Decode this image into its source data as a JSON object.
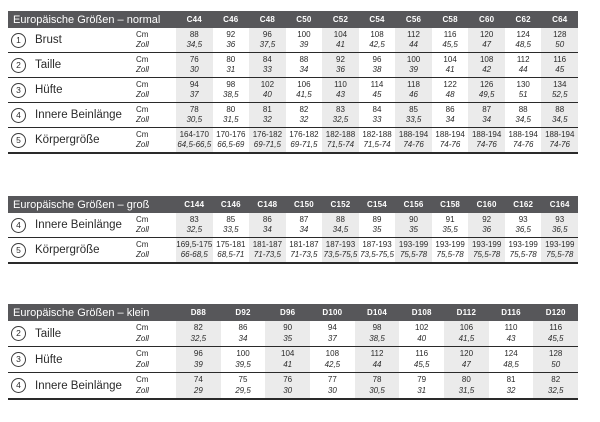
{
  "colors": {
    "header_bg": "#57575a",
    "header_text": "#ffffff",
    "column_shade": "#ebebeb",
    "rule": "#2a2a2a",
    "ink": "#2a2a2a"
  },
  "units": {
    "primary": "Cm",
    "secondary": "Zoll"
  },
  "sections": [
    {
      "title": "Europäische Größen – normal",
      "columns": [
        "C44",
        "C46",
        "C48",
        "C50",
        "C52",
        "C54",
        "C56",
        "C58",
        "C60",
        "C62",
        "C64"
      ],
      "rows": [
        {
          "num": "1",
          "label": "Brust",
          "cm": [
            "88",
            "92",
            "96",
            "100",
            "104",
            "108",
            "112",
            "116",
            "120",
            "124",
            "128"
          ],
          "zoll": [
            "34,5",
            "36",
            "37,5",
            "39",
            "41",
            "42,5",
            "44",
            "45,5",
            "47",
            "48,5",
            "50"
          ]
        },
        {
          "num": "2",
          "label": "Taille",
          "cm": [
            "76",
            "80",
            "84",
            "88",
            "92",
            "96",
            "100",
            "104",
            "108",
            "112",
            "116"
          ],
          "zoll": [
            "30",
            "31",
            "33",
            "34",
            "36",
            "38",
            "39",
            "41",
            "42",
            "44",
            "45"
          ]
        },
        {
          "num": "3",
          "label": "Hüfte",
          "cm": [
            "94",
            "98",
            "102",
            "106",
            "110",
            "114",
            "118",
            "122",
            "126",
            "130",
            "134"
          ],
          "zoll": [
            "37",
            "38,5",
            "40",
            "41,5",
            "43",
            "45",
            "46",
            "48",
            "49,5",
            "51",
            "52,5"
          ]
        },
        {
          "num": "4",
          "label": "Innere Beinlänge",
          "cm": [
            "78",
            "80",
            "81",
            "82",
            "83",
            "84",
            "85",
            "86",
            "87",
            "88",
            "88"
          ],
          "zoll": [
            "30,5",
            "31,5",
            "32",
            "32",
            "32,5",
            "33",
            "33,5",
            "34",
            "34",
            "34,5",
            "34,5"
          ]
        },
        {
          "num": "5",
          "label": "Körpergröße",
          "cm": [
            "164-170",
            "170-176",
            "176-182",
            "176-182",
            "182-188",
            "182-188",
            "188-194",
            "188-194",
            "188-194",
            "188-194",
            "188-194"
          ],
          "zoll": [
            "64,5-66,5",
            "66,5-69",
            "69-71,5",
            "69-71,5",
            "71,5-74",
            "71,5-74",
            "74-76",
            "74-76",
            "74-76",
            "74-76",
            "74-76"
          ]
        }
      ]
    },
    {
      "title": "Europäische Größen – groß",
      "columns": [
        "C144",
        "C146",
        "C148",
        "C150",
        "C152",
        "C154",
        "C156",
        "C158",
        "C160",
        "C162",
        "C164"
      ],
      "rows": [
        {
          "num": "4",
          "label": "Innere Beinlänge",
          "cm": [
            "83",
            "85",
            "86",
            "87",
            "88",
            "89",
            "90",
            "91",
            "92",
            "93",
            "93"
          ],
          "zoll": [
            "32,5",
            "33,5",
            "34",
            "34",
            "34,5",
            "35",
            "35",
            "35,5",
            "36",
            "36,5",
            "36,5"
          ]
        },
        {
          "num": "5",
          "label": "Körpergröße",
          "cm": [
            "169,5-175",
            "175-181",
            "181-187",
            "181-187",
            "187-193",
            "187-193",
            "193-199",
            "193-199",
            "193-199",
            "193-199",
            "193-199"
          ],
          "zoll": [
            "66-68,5",
            "68,5-71",
            "71-73,5",
            "71-73,5",
            "73,5-75,5",
            "73,5-75,5",
            "75,5-78",
            "75,5-78",
            "75,5-78",
            "75,5-78",
            "75,5-78"
          ]
        }
      ]
    },
    {
      "title": "Europäische Größen – klein",
      "columns": [
        "D88",
        "D92",
        "D96",
        "D100",
        "D104",
        "D108",
        "D112",
        "D116",
        "D120"
      ],
      "rows": [
        {
          "num": "2",
          "label": "Taille",
          "cm": [
            "82",
            "86",
            "90",
            "94",
            "98",
            "102",
            "106",
            "110",
            "116"
          ],
          "zoll": [
            "32,5",
            "34",
            "35",
            "37",
            "38,5",
            "40",
            "41,5",
            "43",
            "45,5"
          ]
        },
        {
          "num": "3",
          "label": "Hüfte",
          "cm": [
            "96",
            "100",
            "104",
            "108",
            "112",
            "116",
            "120",
            "124",
            "128"
          ],
          "zoll": [
            "39",
            "39,5",
            "41",
            "42,5",
            "44",
            "45,5",
            "47",
            "48,5",
            "50"
          ]
        },
        {
          "num": "4",
          "label": "Innere Beinlänge",
          "cm": [
            "74",
            "75",
            "76",
            "77",
            "78",
            "79",
            "80",
            "81",
            "82"
          ],
          "zoll": [
            "29",
            "29,5",
            "30",
            "30",
            "30,5",
            "31",
            "31,5",
            "32",
            "32,5"
          ]
        }
      ]
    }
  ]
}
